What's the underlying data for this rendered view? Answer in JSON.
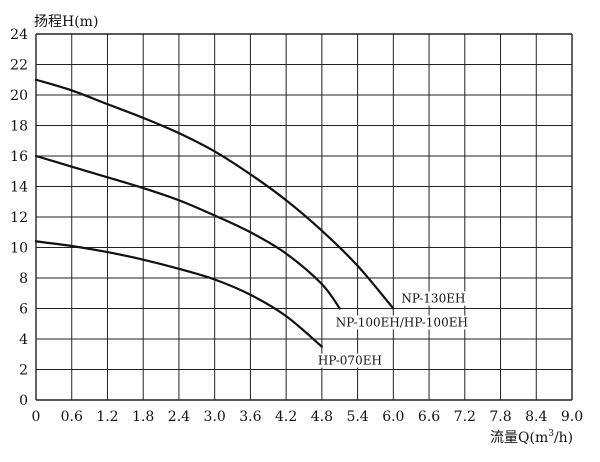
{
  "chart_data": {
    "type": "line",
    "ylabel": "扬程H(m)",
    "xlabel_prefix": "流量Q(m",
    "xlabel_superscript": "3",
    "xlabel_suffix": "/h)",
    "xlim": [
      0,
      9.0
    ],
    "ylim": [
      0,
      24
    ],
    "grid": true,
    "x_ticks": [
      "0",
      "0.6",
      "1.2",
      "1.8",
      "2.4",
      "3.0",
      "3.6",
      "4.2",
      "4.8",
      "5.4",
      "6.0",
      "6.6",
      "7.2",
      "7.8",
      "8.4",
      "9.0"
    ],
    "y_ticks": [
      "0",
      "2",
      "4",
      "6",
      "8",
      "10",
      "12",
      "14",
      "16",
      "18",
      "20",
      "22",
      "24"
    ],
    "series": [
      {
        "name": "NP-130EH",
        "x": [
          0,
          0.6,
          1.2,
          1.8,
          2.4,
          3.0,
          3.6,
          4.2,
          4.8,
          5.4,
          6.0
        ],
        "y": [
          21.0,
          20.3,
          19.4,
          18.5,
          17.5,
          16.3,
          14.8,
          13.1,
          11.1,
          8.8,
          6.0
        ]
      },
      {
        "name": "NP-100EH/HP-100EH",
        "x": [
          0,
          0.6,
          1.2,
          1.8,
          2.4,
          3.0,
          3.6,
          4.2,
          4.8,
          5.1
        ],
        "y": [
          16.0,
          15.3,
          14.6,
          13.9,
          13.1,
          12.1,
          11.0,
          9.6,
          7.6,
          6.0
        ]
      },
      {
        "name": "HP-070EH",
        "x": [
          0,
          0.6,
          1.2,
          1.8,
          2.4,
          3.0,
          3.6,
          4.2,
          4.8
        ],
        "y": [
          10.4,
          10.1,
          9.7,
          9.2,
          8.6,
          7.9,
          6.9,
          5.5,
          3.5
        ]
      }
    ]
  }
}
